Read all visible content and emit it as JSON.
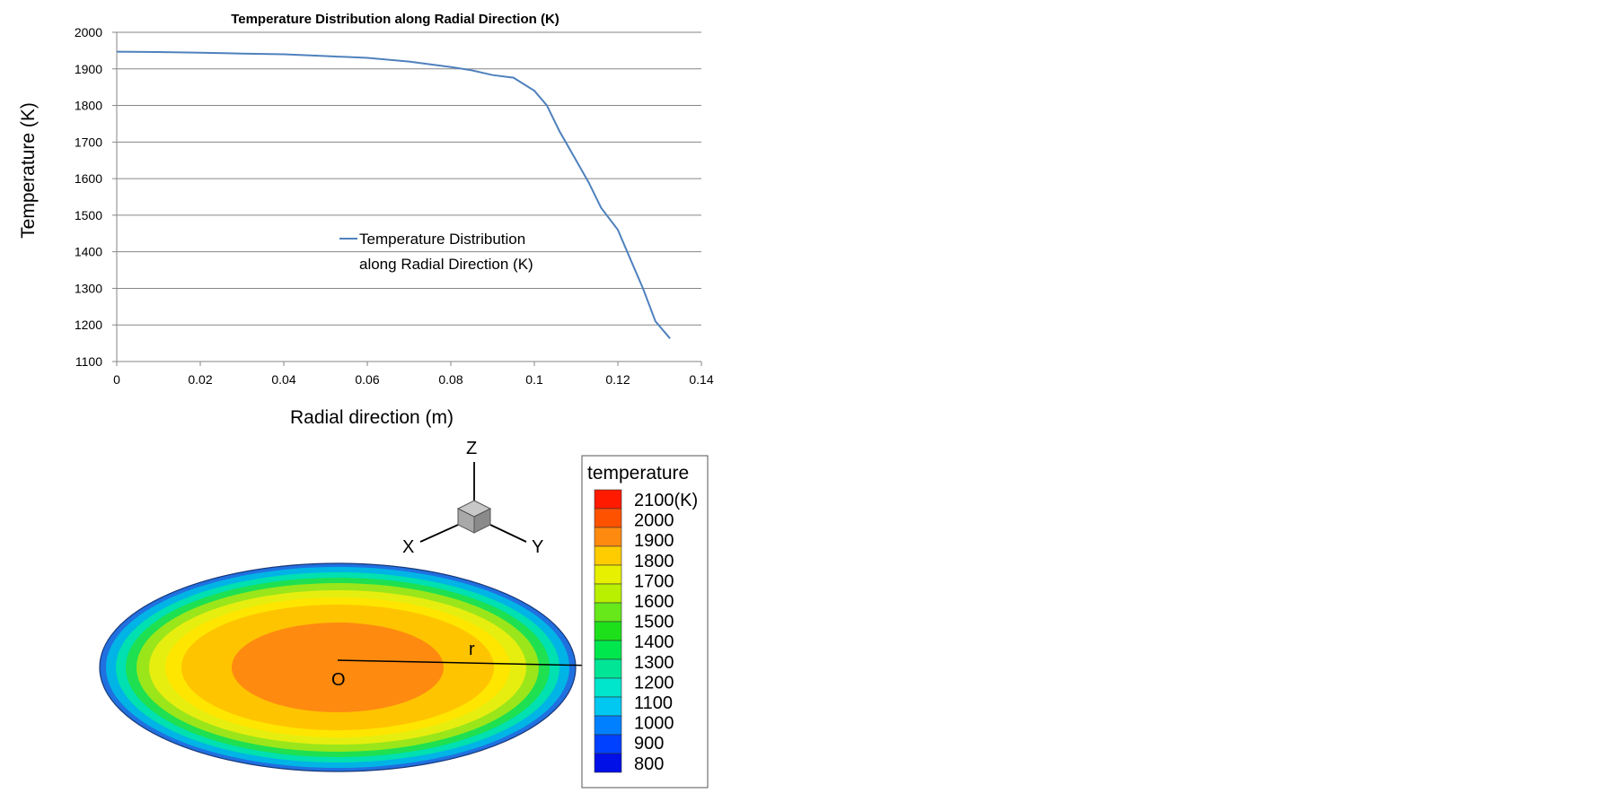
{
  "chart_data": {
    "type": "line",
    "title": "Temperature Distribution along Radial Direction (K)",
    "xlabel": "Radial direction (m)",
    "ylabel": "Temperature (K)",
    "xlim": [
      0,
      0.14
    ],
    "ylim": [
      1100,
      2000
    ],
    "xticks": [
      "0",
      "0.02",
      "0.04",
      "0.06",
      "0.08",
      "0.1",
      "0.12",
      "0.14"
    ],
    "yticks": [
      "1100",
      "1200",
      "1300",
      "1400",
      "1500",
      "1600",
      "1700",
      "1800",
      "1900",
      "2000"
    ],
    "grid": "horizontal",
    "legend_position": "center",
    "series": [
      {
        "name_line1": "Temperature Distribution",
        "name_line2": "along Radial Direction (K)",
        "color": "#4f81bd",
        "x": [
          0,
          0.01,
          0.02,
          0.03,
          0.04,
          0.05,
          0.06,
          0.07,
          0.08,
          0.085,
          0.09,
          0.095,
          0.1,
          0.103,
          0.106,
          0.11,
          0.113,
          0.116,
          0.12,
          0.123,
          0.126,
          0.129,
          0.1325
        ],
        "y": [
          1947,
          1946,
          1944,
          1942,
          1940,
          1935,
          1930,
          1920,
          1905,
          1896,
          1883,
          1876,
          1840,
          1800,
          1730,
          1650,
          1590,
          1520,
          1460,
          1380,
          1300,
          1210,
          1163
        ]
      }
    ]
  },
  "figure": {
    "axes_letters": {
      "z": "Z",
      "x": "X",
      "y": "Y"
    },
    "origin_label": "O",
    "radius_label": "r",
    "colorbar": {
      "title": "temperature",
      "labels": [
        "2100(K)",
        "2000",
        "1900",
        "1800",
        "1700",
        "1600",
        "1500",
        "1400",
        "1300",
        "1200",
        "1100",
        "1000",
        "900",
        "800"
      ],
      "colors": [
        "#ff1a00",
        "#ff5200",
        "#ff8a10",
        "#ffcc00",
        "#e6f000",
        "#b8f000",
        "#66e81a",
        "#1ee01a",
        "#00e64d",
        "#00e696",
        "#00e6cc",
        "#00c8f0",
        "#0080ff",
        "#0040ff",
        "#0010e6"
      ]
    },
    "disk_colors": [
      "#2070e0",
      "#00b4e6",
      "#00e0b0",
      "#1ee050",
      "#9ae61a",
      "#e6ee10",
      "#ffe600",
      "#ffc400",
      "#ff8a10"
    ]
  }
}
